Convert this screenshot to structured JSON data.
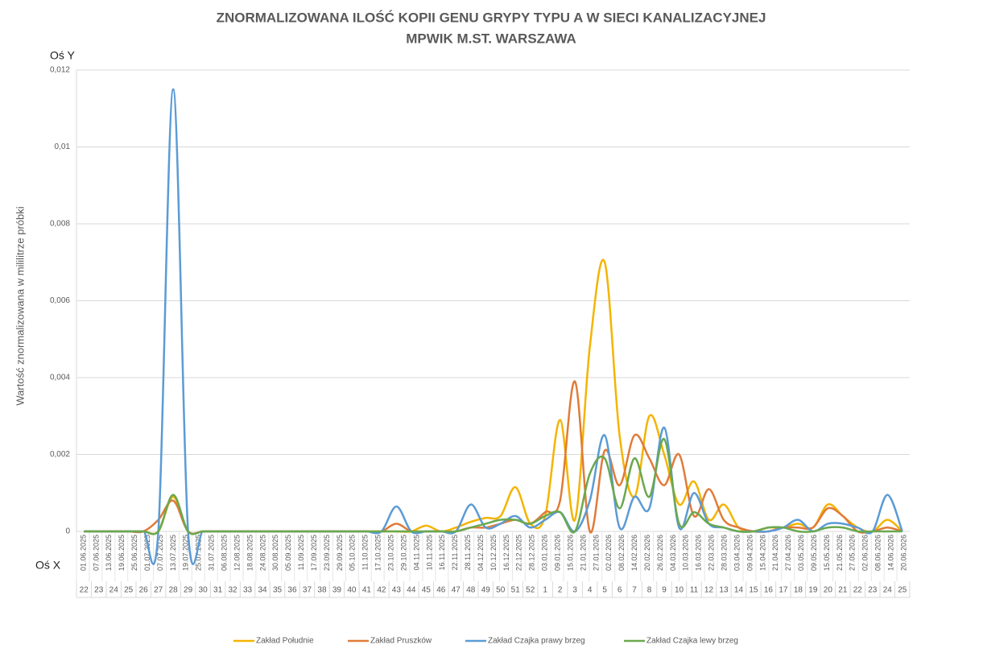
{
  "chart_data": {
    "type": "line",
    "title": [
      "ZNORMALIZOWANA ILOŚĆ KOPII GENU GRYPY TYPU A W SIECI KANALIZACYJNEJ",
      "MPWIK M.ST. WARSZAWA"
    ],
    "y_axis_name": "Oś Y",
    "x_axis_name": "Oś X",
    "y_label": "Wartość znormalizowana  w mililitrze próbki",
    "dates": [
      "01.06.2025",
      "07.06.2025",
      "13.06.2025",
      "19.06.2025",
      "25.06.2025",
      "01.07.2025",
      "07.07.2025",
      "13.07.2025",
      "19.07.2025",
      "25.07.2025",
      "31.07.2025",
      "06.08.2025",
      "12.08.2025",
      "18.08.2025",
      "24.08.2025",
      "30.08.2025",
      "05.09.2025",
      "11.09.2025",
      "17.09.2025",
      "23.09.2025",
      "29.09.2025",
      "05.10.2025",
      "11.10.2025",
      "17.10.2025",
      "23.10.2025",
      "29.10.2025",
      "04.11.2025",
      "10.11.2025",
      "16.11.2025",
      "22.11.2025",
      "28.11.2025",
      "04.12.2025",
      "10.12.2025",
      "16.12.2025",
      "22.12.2025",
      "28.12.2025",
      "03.01.2026",
      "09.01.2026",
      "15.01.2026",
      "21.01.2026",
      "27.01.2026",
      "02.02.2026",
      "08.02.2026",
      "14.02.2026",
      "20.02.2026",
      "26.02.2026",
      "04.03.2026",
      "10.03.2026",
      "16.03.2026",
      "22.03.2026",
      "28.03.2026",
      "03.04.2026",
      "09.04.2026",
      "15.04.2026",
      "21.04.2026",
      "27.04.2026",
      "03.05.2026",
      "09.05.2026",
      "15.05.2026",
      "21.05.2026",
      "27.05.2026",
      "02.06.2026",
      "08.06.2026",
      "14.06.2026",
      "20.06.2026"
    ],
    "categories": [
      "22",
      "23",
      "24",
      "25",
      "26",
      "27",
      "28",
      "29",
      "30",
      "31",
      "32",
      "33",
      "34",
      "35",
      "36",
      "37",
      "38",
      "39",
      "40",
      "41",
      "42",
      "43",
      "44",
      "45",
      "46",
      "47",
      "48",
      "49",
      "50",
      "51",
      "52",
      "1",
      "2",
      "3",
      "4",
      "5",
      "6",
      "7",
      "8",
      "9",
      "10",
      "11",
      "12",
      "13",
      "14",
      "15",
      "16",
      "17",
      "18",
      "19",
      "20",
      "21",
      "22",
      "23",
      "24",
      "25"
    ],
    "series": [
      {
        "name": "Zakład Południe",
        "color": "#f4b400",
        "values": [
          0,
          0,
          0,
          0,
          0,
          0,
          0.0009,
          0,
          0,
          0,
          0,
          0,
          0,
          0,
          0,
          0,
          0,
          0,
          0,
          0,
          0,
          0,
          0,
          0.00015,
          0,
          0.0001,
          0.00025,
          0.00035,
          0.0004,
          0.00115,
          0.0002,
          0.0004,
          0.0029,
          0.0003,
          0.0048,
          0.007,
          0.0025,
          0.0009,
          0.003,
          0.002,
          0.0007,
          0.0013,
          0.0003,
          0.0007,
          0.0001,
          0,
          0.0001,
          0.0001,
          0.0002,
          0.0001,
          0.0007,
          0.0004,
          0.0001,
          0,
          0.0003,
          0
        ]
      },
      {
        "name": "Zakład Pruszków",
        "color": "#e07b39",
        "values": [
          0,
          0,
          0,
          0,
          0,
          0.0003,
          0.0008,
          0,
          0,
          0,
          0,
          0,
          0,
          0,
          0,
          0,
          0,
          0,
          0,
          0,
          0,
          0.0002,
          0,
          0,
          0,
          0,
          0.0001,
          0.0001,
          0.0002,
          0.0003,
          0.0002,
          0.0005,
          0.0008,
          0.0039,
          0,
          0.0021,
          0.0012,
          0.0025,
          0.0019,
          0.0012,
          0.002,
          0.0004,
          0.0011,
          0.0003,
          0.0001,
          0,
          0,
          0.0001,
          0.0001,
          0.0001,
          0.0006,
          0.0004,
          0,
          0,
          0.0001,
          0
        ]
      },
      {
        "name": "Zakład Czajka prawy brzeg",
        "color": "#5b9bd5",
        "values": [
          0,
          0,
          0,
          0,
          0,
          0,
          0.0115,
          0,
          0,
          0,
          0,
          0,
          0,
          0,
          0,
          0,
          0,
          0,
          0,
          0,
          0,
          0.00065,
          0,
          0,
          0,
          0,
          0.0007,
          0.0001,
          0.0002,
          0.0004,
          0.0001,
          0.0003,
          0.0005,
          0,
          0.0008,
          0.0025,
          0.0001,
          0.0009,
          0.0006,
          0.0027,
          0.0001,
          0.001,
          0.0002,
          0.0001,
          0,
          0,
          0,
          0.0001,
          0.0003,
          0,
          0.0002,
          0.0002,
          0.0001,
          0,
          0.00095,
          0
        ]
      },
      {
        "name": "Zakład Czajka lewy brzeg",
        "color": "#6aa84f",
        "values": [
          0,
          0,
          0,
          0,
          0,
          0,
          0.00095,
          0,
          0,
          0,
          0,
          0,
          0,
          0,
          0,
          0,
          0,
          0,
          0,
          0,
          0,
          0,
          0,
          0,
          0,
          0,
          0.0001,
          0.0002,
          0.0003,
          0.0003,
          0.0002,
          0.0004,
          0.0005,
          0,
          0.0015,
          0.0019,
          0.0006,
          0.0019,
          0.0009,
          0.0024,
          0.0002,
          0.0005,
          0.0002,
          0.0001,
          0,
          0,
          0.0001,
          0.0001,
          0,
          0,
          0.0001,
          0.0001,
          0,
          0,
          0,
          0
        ]
      }
    ],
    "ylim": [
      0,
      0.012
    ],
    "yticks": [
      0,
      {
        "value": 0.002,
        "label": "0,002"
      },
      {
        "value": 0.004,
        "label": "0,004"
      },
      {
        "value": 0.006,
        "label": "0,006"
      },
      {
        "value": 0.008,
        "label": "0,008"
      },
      {
        "value": 0.01,
        "label": "0,01"
      },
      {
        "value": 0.012,
        "label": "0,012"
      }
    ],
    "grid": true,
    "legend": "bottom"
  }
}
